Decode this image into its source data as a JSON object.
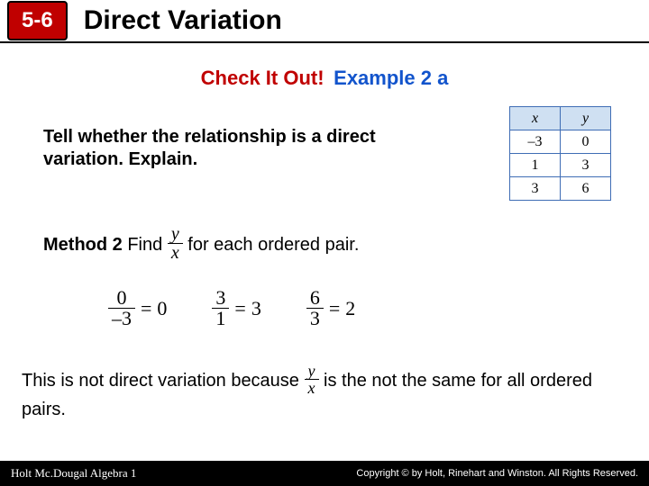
{
  "header": {
    "section_number": "5-6",
    "title": "Direct Variation",
    "badge_bg": "#c00000",
    "badge_fg": "#ffffff"
  },
  "subtitle": {
    "red_text": "Check It Out!",
    "blue_text": "Example 2 a",
    "red_color": "#c00000",
    "blue_color": "#1254cc"
  },
  "prompt": "Tell whether the relationship is a direct variation. Explain.",
  "table": {
    "header_bg": "#cfe0f2",
    "border_color": "#3f6db5",
    "columns": [
      "x",
      "y"
    ],
    "rows": [
      [
        "–3",
        "0"
      ],
      [
        "1",
        "3"
      ],
      [
        "3",
        "6"
      ]
    ]
  },
  "method": {
    "label_bold": "Method 2",
    "label_rest_before": " Find ",
    "frac_num": "y",
    "frac_den": "x",
    "label_rest_after": " for each ordered pair."
  },
  "ratios": [
    {
      "num": "0",
      "den": "–3",
      "result": "0"
    },
    {
      "num": "3",
      "den": "1",
      "result": "3"
    },
    {
      "num": "6",
      "den": "3",
      "result": "2"
    }
  ],
  "explanation": {
    "before": "This is not direct variation because ",
    "frac_num": "y",
    "frac_den": "x",
    "after": " is the not the same for all ordered pairs."
  },
  "footer": {
    "left": "Holt Mc.Dougal Algebra 1",
    "right": "Copyright © by Holt, Rinehart and Winston. All Rights Reserved."
  },
  "colors": {
    "background": "#ffffff",
    "text": "#000000"
  }
}
